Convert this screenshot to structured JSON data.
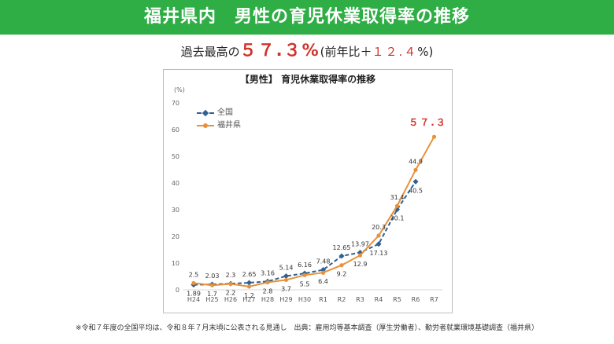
{
  "banner": {
    "title": "福井県内　男性の育児休業取得率の推移"
  },
  "headline": {
    "prefix": "過去最高の",
    "rate": "５７.３%",
    "paren_open": "(前年比＋",
    "diff": "１２.４",
    "paren_close": "%)"
  },
  "colors": {
    "banner": "#2eae45",
    "national": "#2f6191",
    "fukui": "#e8913a",
    "highlight": "#d0342c"
  },
  "footnote": "※令和７年度の全国平均は、令和８年７月末頃に公表される見通し　出典：雇用均等基本調査（厚生労働者）、勤労者就業環境基礎調査（福井県）",
  "chart_data": {
    "type": "line",
    "title": "【男性】 育児休業取得率の推移",
    "unit": "(%)",
    "categories": [
      "H24",
      "H25",
      "H26",
      "H27",
      "H28",
      "H29",
      "H30",
      "R1",
      "R2",
      "R3",
      "R4",
      "R5",
      "R6",
      "R7"
    ],
    "ylim": [
      0,
      70
    ],
    "yticks": [
      0,
      10,
      20,
      30,
      40,
      50,
      60,
      70
    ],
    "grid": false,
    "legend": "top-left",
    "series": [
      {
        "name": "全国",
        "style": "dashed",
        "values": [
          1.89,
          2.03,
          2.3,
          2.65,
          3.16,
          5.14,
          6.16,
          7.48,
          12.65,
          13.97,
          17.13,
          30.1,
          40.5,
          null
        ]
      },
      {
        "name": "福井県",
        "style": "solid",
        "values": [
          2.5,
          1.7,
          2.2,
          1.2,
          2.8,
          3.7,
          5.5,
          6.4,
          9.2,
          12.9,
          20.3,
          31.4,
          44.9,
          57.3
        ]
      }
    ],
    "labels": [
      {
        "text": "2.5",
        "series": 1,
        "index": 0,
        "pos": "above"
      },
      {
        "text": "1.89",
        "series": 0,
        "index": 0,
        "pos": "below"
      },
      {
        "text": "2.03",
        "series": 0,
        "index": 1,
        "pos": "above"
      },
      {
        "text": "1.7",
        "series": 1,
        "index": 1,
        "pos": "below"
      },
      {
        "text": "2.3",
        "series": 0,
        "index": 2,
        "pos": "above"
      },
      {
        "text": "2.2",
        "series": 1,
        "index": 2,
        "pos": "below"
      },
      {
        "text": "2.65",
        "series": 0,
        "index": 3,
        "pos": "above"
      },
      {
        "text": "1.2",
        "series": 1,
        "index": 3,
        "pos": "below"
      },
      {
        "text": "3.16",
        "series": 0,
        "index": 4,
        "pos": "above"
      },
      {
        "text": "2.8",
        "series": 1,
        "index": 4,
        "pos": "below"
      },
      {
        "text": "5.14",
        "series": 0,
        "index": 5,
        "pos": "above"
      },
      {
        "text": "3.7",
        "series": 1,
        "index": 5,
        "pos": "below"
      },
      {
        "text": "6.16",
        "series": 0,
        "index": 6,
        "pos": "above"
      },
      {
        "text": "5.5",
        "series": 1,
        "index": 6,
        "pos": "below"
      },
      {
        "text": "7.48",
        "series": 0,
        "index": 7,
        "pos": "above"
      },
      {
        "text": "6.4",
        "series": 1,
        "index": 7,
        "pos": "below"
      },
      {
        "text": "12.65",
        "series": 0,
        "index": 8,
        "pos": "above"
      },
      {
        "text": "9.2",
        "series": 1,
        "index": 8,
        "pos": "below"
      },
      {
        "text": "13.97",
        "series": 0,
        "index": 9,
        "pos": "above"
      },
      {
        "text": "12.9",
        "series": 1,
        "index": 9,
        "pos": "below"
      },
      {
        "text": "20.3",
        "series": 1,
        "index": 10,
        "pos": "above"
      },
      {
        "text": "17.13",
        "series": 0,
        "index": 10,
        "pos": "below"
      },
      {
        "text": "31.4",
        "series": 1,
        "index": 11,
        "pos": "above"
      },
      {
        "text": "30.1",
        "series": 0,
        "index": 11,
        "pos": "below"
      },
      {
        "text": "44.9",
        "series": 1,
        "index": 12,
        "pos": "above"
      },
      {
        "text": "40.5",
        "series": 0,
        "index": 12,
        "pos": "below"
      },
      {
        "text": "５７.３",
        "series": 1,
        "index": 13,
        "pos": "above",
        "highlight": true
      }
    ]
  }
}
